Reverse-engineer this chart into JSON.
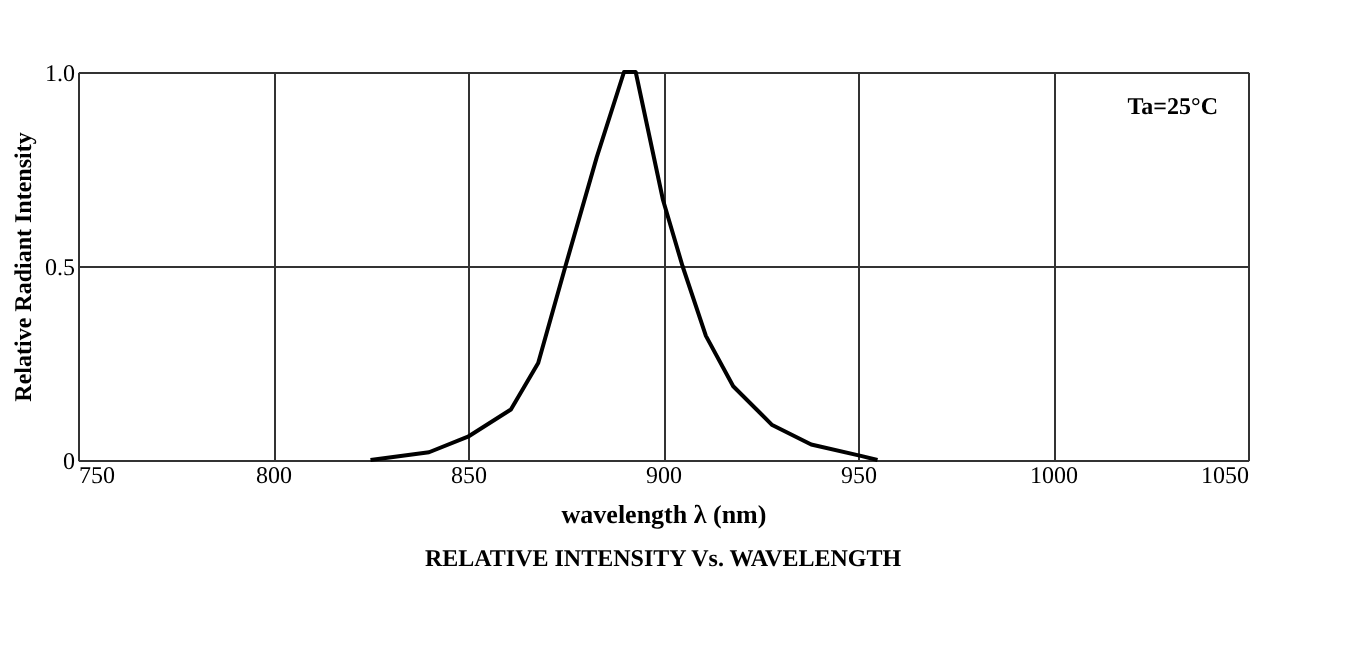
{
  "chart_data": {
    "type": "line",
    "xlabel": "wavelength λ (nm)",
    "ylabel": "Relative Radiant Intensity",
    "x": [
      825,
      840,
      850,
      861,
      868,
      875,
      883,
      890,
      893,
      900,
      905,
      911,
      918,
      928,
      938,
      951,
      955
    ],
    "series": [
      {
        "color": "#000000",
        "values": [
          0,
          0.02,
          0.06,
          0.13,
          0.25,
          0.5,
          0.78,
          1.0,
          1.0,
          0.67,
          0.5,
          0.32,
          0.19,
          0.09,
          0.04,
          0.01,
          0
        ]
      }
    ],
    "xlim": [
      750,
      1050
    ],
    "xticks": [
      750,
      800,
      850,
      900,
      950,
      1000,
      1050
    ],
    "ylim": [
      0,
      1
    ],
    "yticks": [
      0,
      0.5,
      {
        "value": 1,
        "label": "1.0"
      }
    ],
    "grid": true,
    "legend": false,
    "marker": "none",
    "line_style": "solid",
    "annotations": [
      "Ta=25°C",
      "RELATIVE INTENSITY Vs. WAVELENGTH"
    ]
  }
}
